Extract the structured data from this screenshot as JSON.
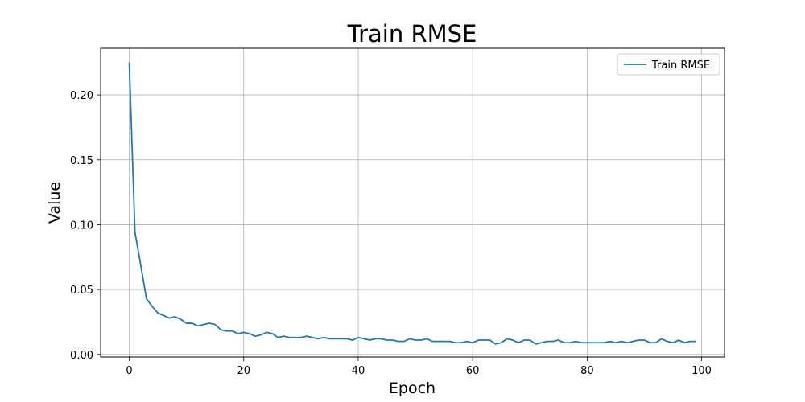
{
  "chart_data": {
    "type": "line",
    "title": "Train RMSE",
    "xlabel": "Epoch",
    "ylabel": "Value",
    "xlim": [
      -5,
      104
    ],
    "ylim": [
      -0.002,
      0.236
    ],
    "xticks": [
      "0",
      "20",
      "40",
      "60",
      "80",
      "100"
    ],
    "yticks": [
      "0.00",
      "0.05",
      "0.10",
      "0.15",
      "0.20"
    ],
    "grid": true,
    "legend_position": "top-right",
    "series": [
      {
        "name": "Train RMSE",
        "color": "#1f77b4",
        "x": [
          0,
          1,
          2,
          3,
          4,
          5,
          6,
          7,
          8,
          9,
          10,
          11,
          12,
          13,
          14,
          15,
          16,
          17,
          18,
          19,
          20,
          21,
          22,
          23,
          24,
          25,
          26,
          27,
          28,
          29,
          30,
          31,
          32,
          33,
          34,
          35,
          36,
          37,
          38,
          39,
          40,
          41,
          42,
          43,
          44,
          45,
          46,
          47,
          48,
          49,
          50,
          51,
          52,
          53,
          54,
          55,
          56,
          57,
          58,
          59,
          60,
          61,
          62,
          63,
          64,
          65,
          66,
          67,
          68,
          69,
          70,
          71,
          72,
          73,
          74,
          75,
          76,
          77,
          78,
          79,
          80,
          81,
          82,
          83,
          84,
          85,
          86,
          87,
          88,
          89,
          90,
          91,
          92,
          93,
          94,
          95,
          96,
          97,
          98,
          99
        ],
        "values": [
          0.225,
          0.094,
          0.069,
          0.043,
          0.037,
          0.032,
          0.03,
          0.028,
          0.029,
          0.027,
          0.024,
          0.024,
          0.022,
          0.023,
          0.024,
          0.023,
          0.019,
          0.018,
          0.018,
          0.016,
          0.017,
          0.016,
          0.014,
          0.015,
          0.017,
          0.016,
          0.013,
          0.014,
          0.013,
          0.013,
          0.013,
          0.014,
          0.013,
          0.012,
          0.013,
          0.012,
          0.012,
          0.012,
          0.012,
          0.011,
          0.013,
          0.012,
          0.011,
          0.012,
          0.012,
          0.011,
          0.011,
          0.01,
          0.01,
          0.012,
          0.011,
          0.011,
          0.012,
          0.01,
          0.01,
          0.01,
          0.01,
          0.009,
          0.009,
          0.01,
          0.009,
          0.011,
          0.011,
          0.011,
          0.008,
          0.009,
          0.012,
          0.011,
          0.009,
          0.011,
          0.011,
          0.008,
          0.009,
          0.01,
          0.01,
          0.011,
          0.009,
          0.009,
          0.01,
          0.009,
          0.009,
          0.009,
          0.009,
          0.009,
          0.01,
          0.009,
          0.01,
          0.009,
          0.01,
          0.011,
          0.011,
          0.009,
          0.009,
          0.012,
          0.01,
          0.009,
          0.011,
          0.009,
          0.01,
          0.01
        ]
      }
    ]
  }
}
